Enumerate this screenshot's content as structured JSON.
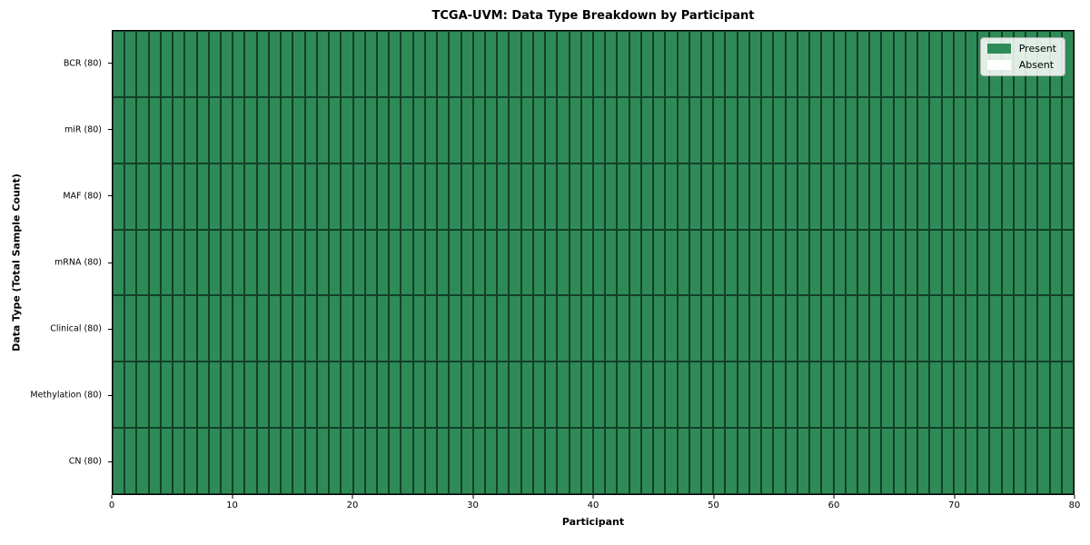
{
  "chart_data": {
    "type": "heatmap",
    "title": "TCGA-UVM: Data Type Breakdown by Participant",
    "xlabel": "Participant",
    "ylabel": "Data Type (Total Sample Count)",
    "xlim": [
      0,
      80
    ],
    "x_ticks": [
      0,
      10,
      20,
      30,
      40,
      50,
      60,
      70,
      80
    ],
    "n_participants": 80,
    "grid": "per-cell borders, no background gridlines",
    "legend_position": "upper right",
    "rows": [
      {
        "label": "BCR (80)",
        "data_type": "BCR",
        "total_sample_count": 80,
        "present": 80,
        "absent": 0
      },
      {
        "label": "miR (80)",
        "data_type": "miR",
        "total_sample_count": 80,
        "present": 80,
        "absent": 0
      },
      {
        "label": "MAF (80)",
        "data_type": "MAF",
        "total_sample_count": 80,
        "present": 80,
        "absent": 0
      },
      {
        "label": "mRNA (80)",
        "data_type": "mRNA",
        "total_sample_count": 80,
        "present": 80,
        "absent": 0
      },
      {
        "label": "Clinical (80)",
        "data_type": "Clinical",
        "total_sample_count": 80,
        "present": 80,
        "absent": 0
      },
      {
        "label": "Methylation (80)",
        "data_type": "Methylation",
        "total_sample_count": 80,
        "present": 80,
        "absent": 0
      },
      {
        "label": "CN (80)",
        "data_type": "CN",
        "total_sample_count": 80,
        "present": 80,
        "absent": 0
      }
    ],
    "legend": [
      {
        "label": "Present",
        "color": "#2e8b57"
      },
      {
        "label": "Absent",
        "color": "#ffffff"
      }
    ],
    "colors": {
      "present": "#2e8b57",
      "absent": "#ffffff",
      "cell_border": "#0a1e10",
      "axis": "#000000",
      "legend_border": "#b0b0b0"
    }
  }
}
